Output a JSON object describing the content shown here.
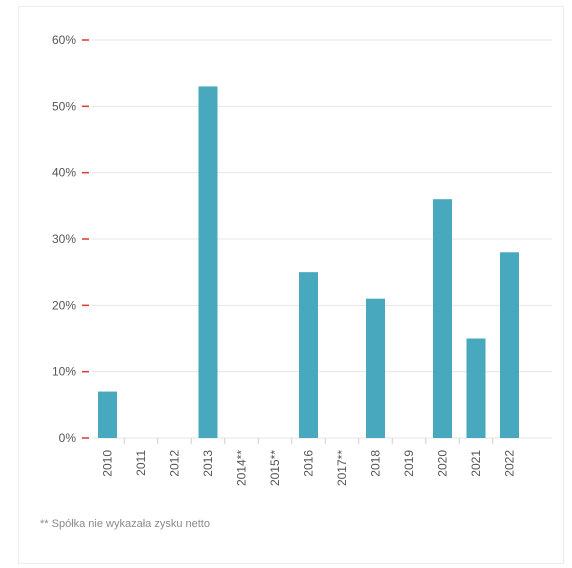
{
  "colors": {
    "bar": "#47a8be",
    "tick_mark": "#e0372e",
    "grid": "#e6e6e6",
    "axis_text": "#555555",
    "footnote": "#8a8a8a"
  },
  "chart_data": {
    "type": "bar",
    "categories": [
      "2010",
      "2011",
      "2012",
      "2013",
      "2014**",
      "2015**",
      "2016",
      "2017**",
      "2018",
      "2019",
      "2020",
      "2021",
      "2022"
    ],
    "values": [
      7,
      0,
      0,
      53,
      0,
      0,
      25,
      0,
      21,
      0,
      36,
      15,
      28
    ],
    "ylim": [
      0,
      60
    ],
    "yticks": [
      0,
      10,
      20,
      30,
      40,
      50,
      60
    ],
    "ytick_labels": [
      "0%",
      "10%",
      "20%",
      "30%",
      "40%",
      "50%",
      "60%"
    ],
    "grid": true,
    "title": "",
    "xlabel": "",
    "ylabel": ""
  },
  "footnote": "** Spółka nie wykazała zysku netto"
}
